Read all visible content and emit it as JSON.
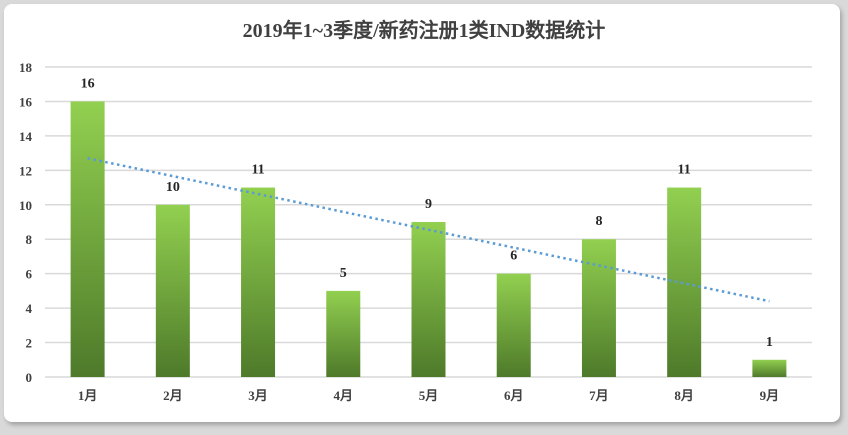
{
  "chart_data": {
    "type": "bar",
    "title": "2019年1~3季度/新药注册1类IND数据统计",
    "categories": [
      "1月",
      "2月",
      "3月",
      "4月",
      "5月",
      "6月",
      "7月",
      "8月",
      "9月"
    ],
    "values": [
      16,
      10,
      11,
      5,
      9,
      6,
      8,
      11,
      1
    ],
    "xlabel": "",
    "ylabel": "",
    "ylim": [
      0,
      18
    ],
    "yticks": [
      0,
      2,
      4,
      6,
      8,
      10,
      12,
      14,
      16,
      18
    ],
    "grid": true,
    "legend": "none",
    "data_labels": true,
    "trendline": {
      "type": "linear",
      "style": "dotted",
      "color": "#5b9bd5",
      "start": 12.7,
      "end": 4.4
    },
    "colors": {
      "bar_top": "#92d050",
      "bar_bottom": "#4e7a2a",
      "grid": "#d9d9d9",
      "text": "#404040"
    }
  }
}
